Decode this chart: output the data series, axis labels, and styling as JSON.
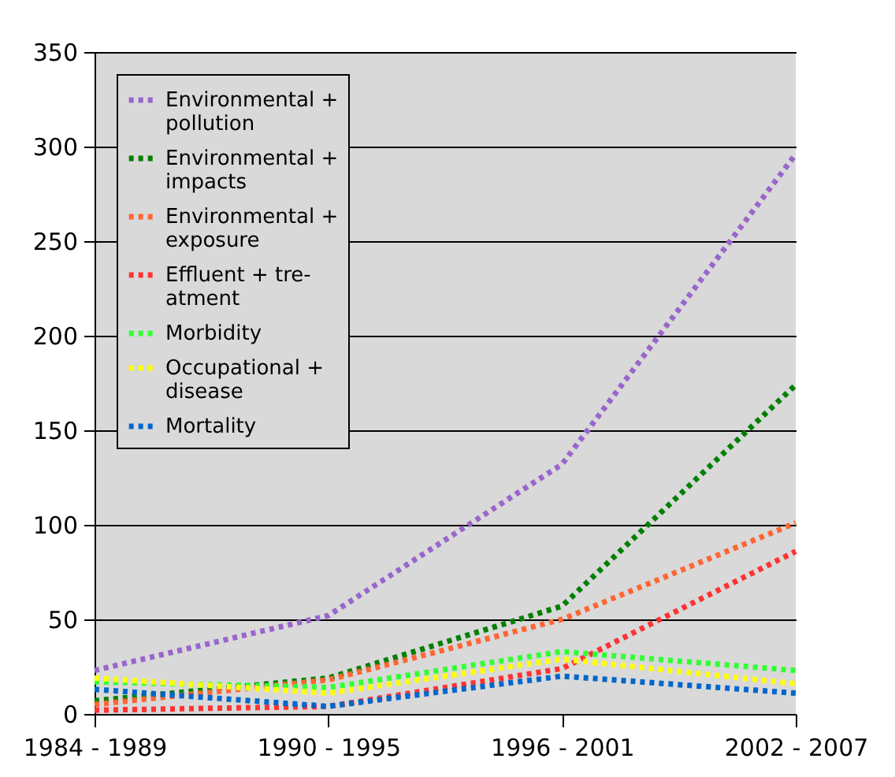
{
  "chart_data": {
    "type": "line",
    "categories": [
      "1984 - 1989",
      "1990 - 1995",
      "1996 - 2001",
      "2002 - 2007"
    ],
    "series": [
      {
        "name": "Environmental +\npollution",
        "color": "#9966cc",
        "values": [
          23,
          52,
          132,
          296
        ]
      },
      {
        "name": "Environmental +\nimpacts",
        "color": "#008000",
        "values": [
          7,
          19,
          57,
          174
        ]
      },
      {
        "name": "Environmental +\nexposure",
        "color": "#ff6633",
        "values": [
          5,
          18,
          50,
          101
        ]
      },
      {
        "name": "Effluent + tre-\natment",
        "color": "#ff3333",
        "values": [
          2,
          4,
          24,
          86
        ]
      },
      {
        "name": "Morbidity",
        "color": "#33ff33",
        "values": [
          17,
          14,
          33,
          23
        ]
      },
      {
        "name": "Occupational +\ndisease",
        "color": "#ffff00",
        "values": [
          19,
          11,
          29,
          16
        ]
      },
      {
        "name": "Mortality",
        "color": "#0066cc",
        "values": [
          13,
          4,
          20,
          11
        ]
      }
    ],
    "ylim": [
      0,
      350
    ],
    "yticks": [
      0,
      50,
      100,
      150,
      200,
      250,
      300,
      350
    ],
    "grid": "y",
    "legend": "top left",
    "line_style": "dotted",
    "marker": "none"
  }
}
